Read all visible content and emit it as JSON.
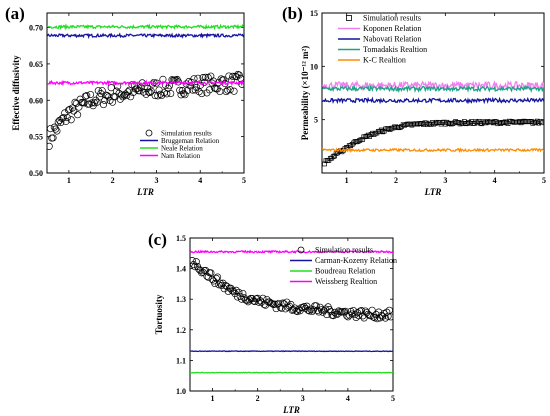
{
  "chart_data": [
    {
      "panel_label": "(a)",
      "type": "line",
      "xlabel": "LTR",
      "ylabel": "Effective diffusivity",
      "xlim": [
        0.5,
        5
      ],
      "ylim": [
        0.5,
        0.72
      ],
      "xticks": [
        1,
        2,
        3,
        4,
        5
      ],
      "yticks": [
        0.5,
        0.55,
        0.6,
        0.65,
        0.7
      ],
      "ytick_labels": [
        "0.50",
        "0.55",
        "0.60",
        "0.65",
        "0.70"
      ],
      "legend_position": "lower-center",
      "series": [
        {
          "name": "Simulation results",
          "kind": "scatter",
          "marker": "circle",
          "color": "#000000",
          "x_range": [
            0.5,
            5
          ],
          "trend": "rising",
          "x": [
            0.5,
            1.0,
            1.5,
            2.0,
            2.5,
            3.0,
            3.5,
            4.0,
            4.5,
            5.0
          ],
          "y": [
            0.545,
            0.582,
            0.6,
            0.608,
            0.612,
            0.616,
            0.619,
            0.621,
            0.623,
            0.624
          ],
          "noise": 0.012
        },
        {
          "name": "Bruggeman Relation",
          "kind": "line",
          "color": "#1414a0",
          "value": 0.689,
          "noise": 0.002
        },
        {
          "name": "Neale Relation",
          "kind": "line",
          "color": "#22dd22",
          "value": 0.701,
          "noise": 0.002
        },
        {
          "name": "Nam Relation",
          "kind": "line",
          "color": "#ff00ff",
          "value": 0.624,
          "noise": 0.002
        }
      ]
    },
    {
      "panel_label": "(b)",
      "type": "line",
      "xlabel": "LTR",
      "ylabel": "Permeability (×10⁻¹² m²)",
      "xlim": [
        0.5,
        5
      ],
      "ylim": [
        0,
        15
      ],
      "xticks": [
        1,
        2,
        3,
        4,
        5
      ],
      "yticks": [
        5,
        10,
        15
      ],
      "ytick_labels": [
        "5",
        "10",
        "15"
      ],
      "legend_position": "upper-left",
      "series": [
        {
          "name": "Simulation results",
          "kind": "scatter",
          "marker": "square",
          "color": "#000000",
          "x": [
            0.5,
            0.75,
            1.0,
            1.25,
            1.5,
            1.75,
            2.0,
            2.25,
            2.5,
            2.75,
            3.0,
            3.5,
            4.0,
            4.5,
            5.0
          ],
          "y": [
            0.8,
            1.6,
            2.4,
            3.1,
            3.6,
            4.0,
            4.3,
            4.5,
            4.6,
            4.65,
            4.7,
            4.72,
            4.74,
            4.75,
            4.76
          ],
          "noise": 0.12
        },
        {
          "name": "Koponen Relation",
          "kind": "line",
          "color": "#f080f0",
          "value": 8.2,
          "noise": 0.35
        },
        {
          "name": "Nabovati Relation",
          "kind": "line",
          "color": "#1414a0",
          "value": 6.8,
          "noise": 0.18
        },
        {
          "name": "Tomadakis Realtion",
          "kind": "line",
          "color": "#1aa383",
          "value": 7.9,
          "noise": 0.2
        },
        {
          "name": "K-C Realtion",
          "kind": "line",
          "color": "#ff8c00",
          "value": 2.15,
          "noise": 0.12
        }
      ]
    },
    {
      "panel_label": "(c)",
      "type": "line",
      "xlabel": "LTR",
      "ylabel": "Tortuosity",
      "xlim": [
        0.5,
        5
      ],
      "ylim": [
        1.0,
        1.5
      ],
      "xticks": [
        1,
        2,
        3,
        4,
        5
      ],
      "yticks": [
        1.0,
        1.1,
        1.2,
        1.3,
        1.4,
        1.5
      ],
      "ytick_labels": [
        "1.0",
        "1.1",
        "1.2",
        "1.3",
        "1.4",
        "1.5"
      ],
      "legend_position": "upper-right",
      "series": [
        {
          "name": "Simulation results",
          "kind": "scatter",
          "marker": "circle",
          "color": "#000000",
          "x": [
            0.5,
            1.0,
            1.5,
            2.0,
            2.5,
            3.0,
            3.5,
            4.0,
            4.5,
            5.0
          ],
          "y": [
            1.43,
            1.37,
            1.32,
            1.295,
            1.28,
            1.27,
            1.262,
            1.255,
            1.25,
            1.25
          ],
          "noise": 0.014
        },
        {
          "name": "Carman-Kozeny Relation",
          "kind": "line",
          "color": "#1414a0",
          "value": 1.13,
          "noise": 0.001
        },
        {
          "name": "Boudreau Relation",
          "kind": "line",
          "color": "#22dd22",
          "value": 1.06,
          "noise": 0.001
        },
        {
          "name": "Weissberg Realtion",
          "kind": "line",
          "color": "#ff00ff",
          "value": 1.455,
          "noise": 0.003
        }
      ]
    }
  ]
}
